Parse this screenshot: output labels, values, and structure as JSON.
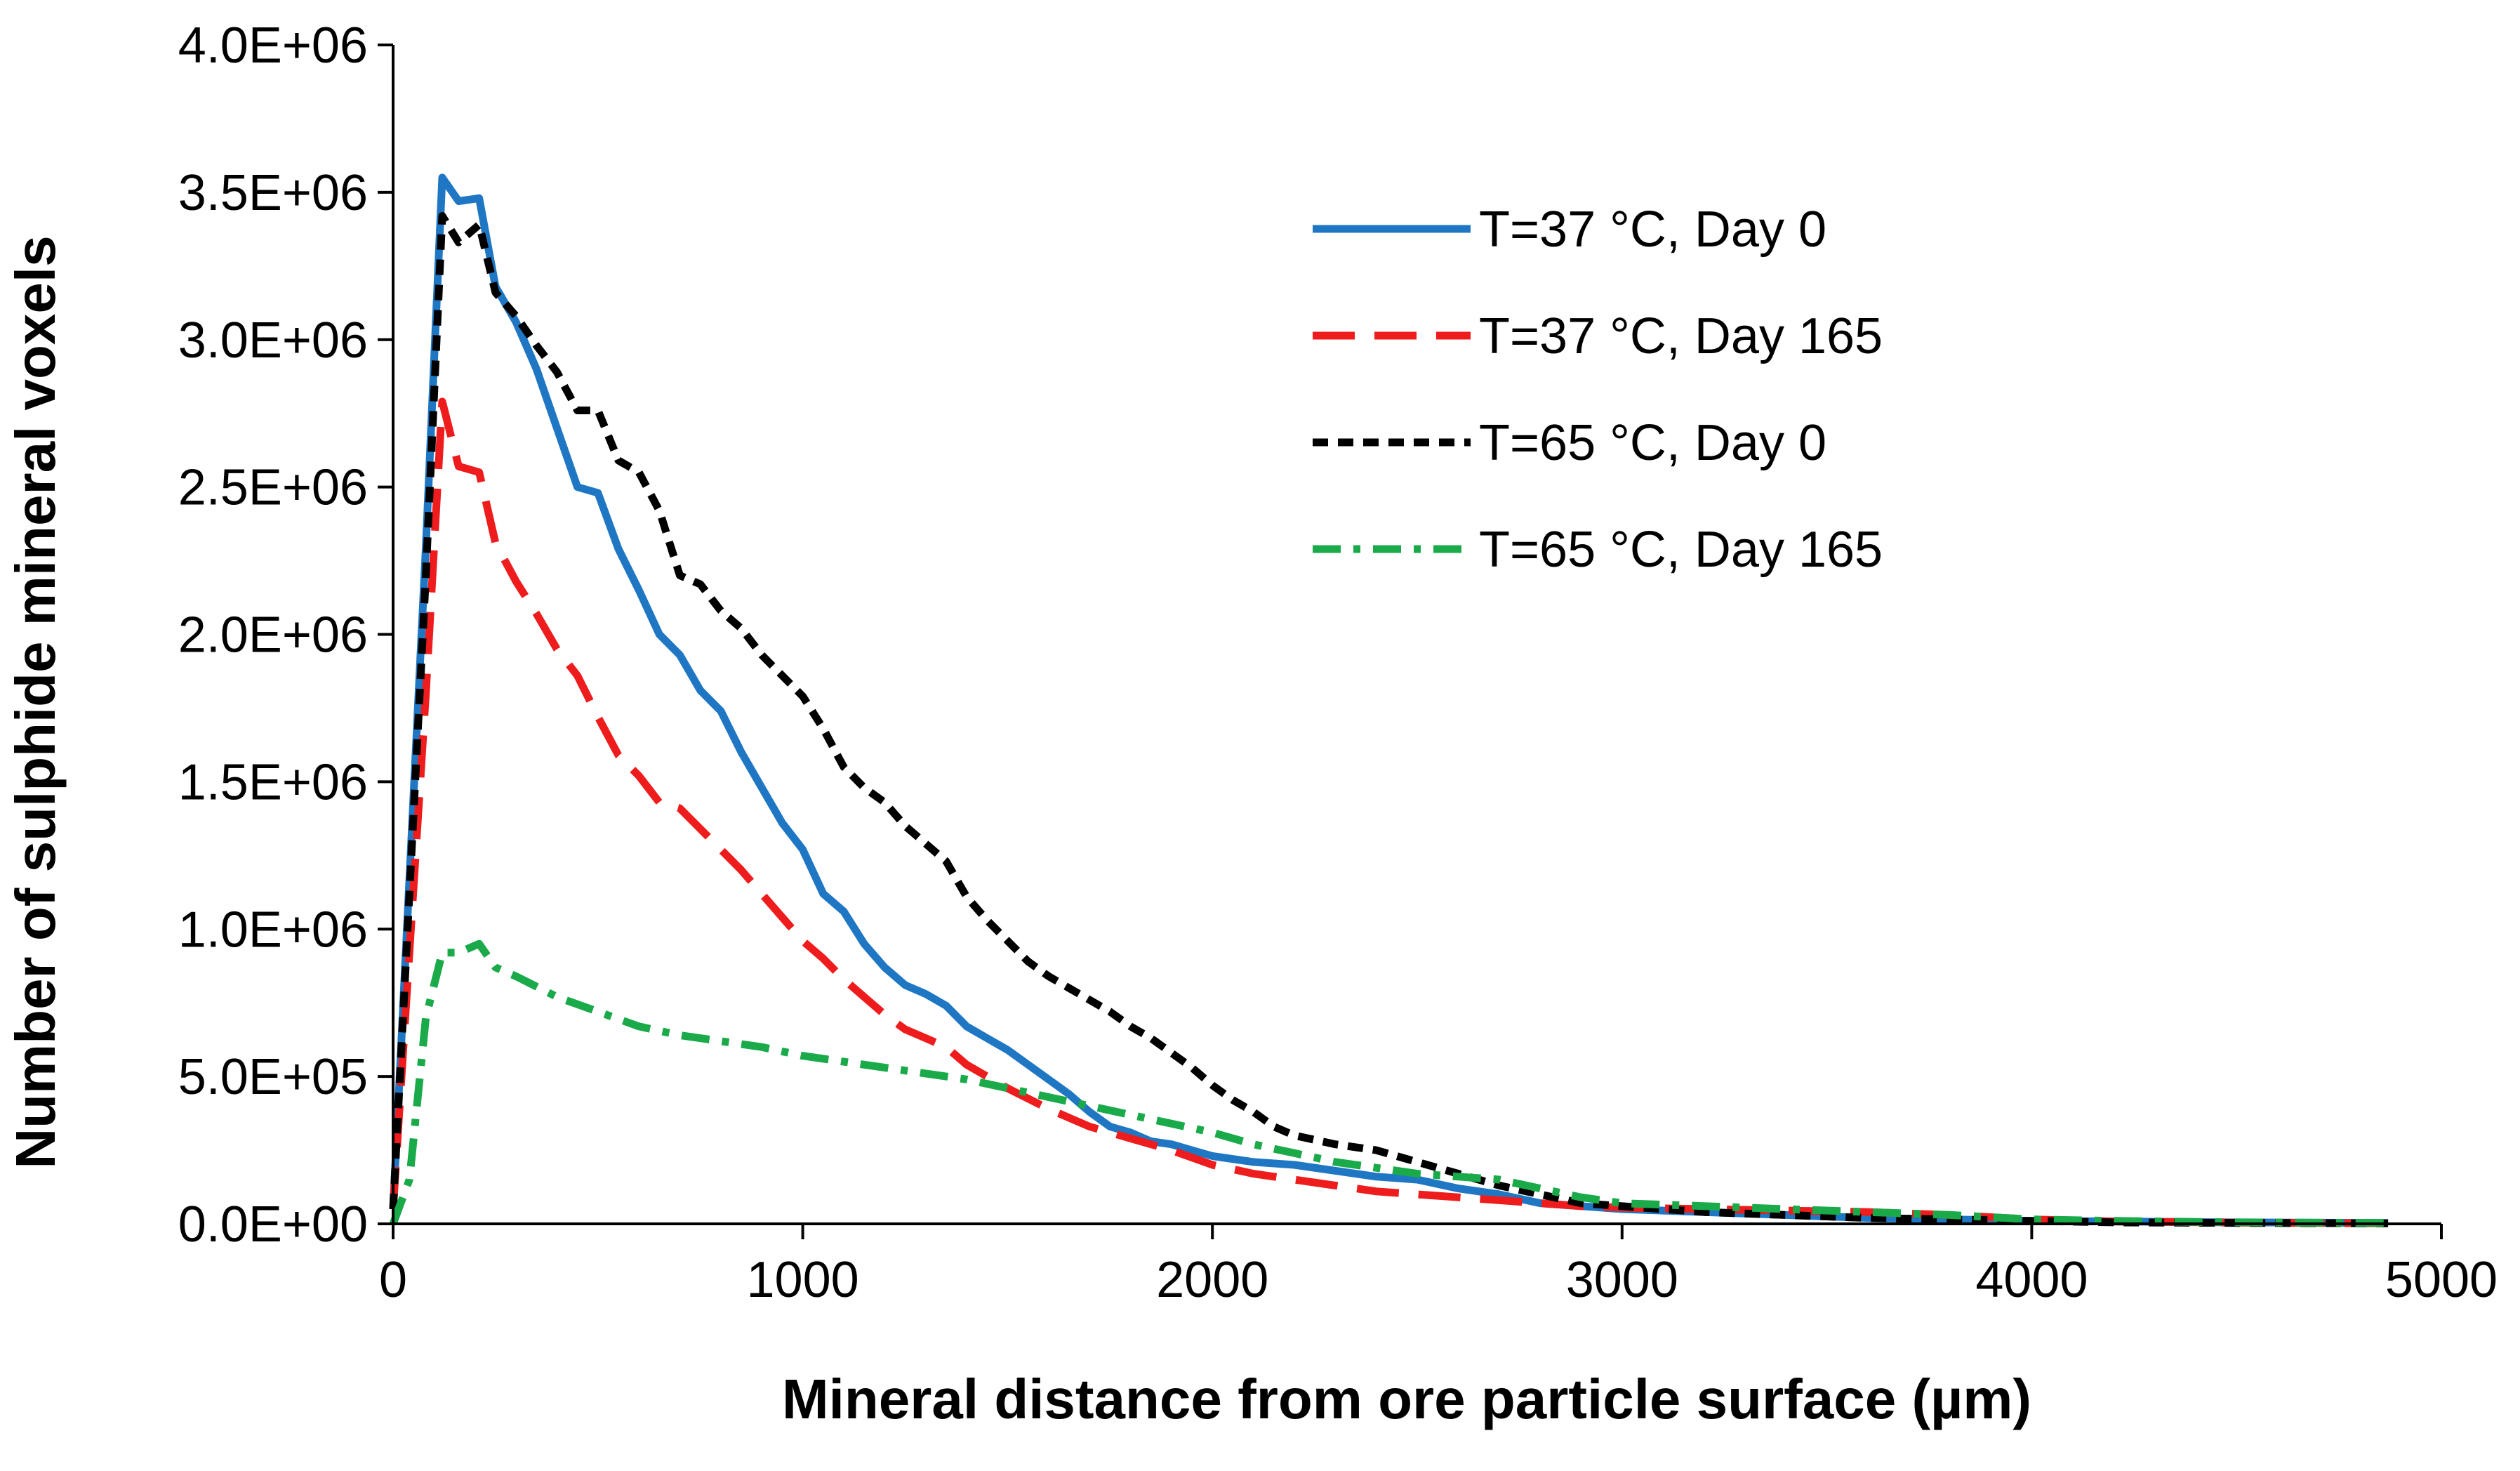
{
  "chart_data": {
    "type": "line",
    "title": "",
    "xlabel": "Mineral distance from ore particle surface (µm)",
    "ylabel": "Number of sulphide mineral voxels",
    "xlim": [
      0,
      5000
    ],
    "ylim": [
      0,
      4000000
    ],
    "xticks": [
      0,
      1000,
      2000,
      3000,
      4000,
      5000
    ],
    "xtick_labels": [
      "0",
      "1000",
      "2000",
      "3000",
      "4000",
      "5000"
    ],
    "yticks": [
      0,
      500000,
      1000000,
      1500000,
      2000000,
      2500000,
      3000000,
      3500000,
      4000000
    ],
    "ytick_labels": [
      "0.0E+00",
      "5.0E+05",
      "1.0E+06",
      "1.5E+06",
      "2.0E+06",
      "2.5E+06",
      "3.0E+06",
      "3.5E+06",
      "4.0E+06"
    ],
    "grid": false,
    "legend_position": "top-right",
    "series": [
      {
        "name": "T=37 °C, Day 0",
        "color": "#1f77c4",
        "dash": "solid",
        "x": [
          0,
          80,
          120,
          160,
          210,
          250,
          300,
          350,
          400,
          450,
          500,
          550,
          600,
          650,
          700,
          750,
          800,
          850,
          900,
          950,
          1000,
          1050,
          1100,
          1150,
          1200,
          1250,
          1300,
          1350,
          1400,
          1450,
          1500,
          1550,
          1600,
          1650,
          1700,
          1750,
          1800,
          1850,
          1900,
          1950,
          2000,
          2100,
          2200,
          2300,
          2400,
          2500,
          2600,
          2700,
          2800,
          2900,
          3000,
          3200,
          3400,
          3600,
          3800,
          4000,
          4200,
          4500,
          4870
        ],
        "y": [
          50000,
          2300000,
          3550000,
          3470000,
          3480000,
          3180000,
          3060000,
          2900000,
          2700000,
          2500000,
          2480000,
          2290000,
          2150000,
          2000000,
          1930000,
          1810000,
          1740000,
          1600000,
          1480000,
          1360000,
          1270000,
          1120000,
          1060000,
          950000,
          870000,
          810000,
          780000,
          740000,
          670000,
          630000,
          590000,
          540000,
          490000,
          440000,
          380000,
          330000,
          310000,
          280000,
          270000,
          250000,
          230000,
          210000,
          200000,
          180000,
          160000,
          150000,
          120000,
          100000,
          70000,
          60000,
          50000,
          40000,
          30000,
          20000,
          15000,
          10000,
          8000,
          5000,
          3000
        ]
      },
      {
        "name": "T=37 °C, Day 165",
        "color": "#ee1c1c",
        "dash": "long-dash",
        "x": [
          0,
          80,
          120,
          160,
          210,
          250,
          300,
          350,
          400,
          450,
          500,
          550,
          600,
          650,
          700,
          750,
          800,
          850,
          900,
          950,
          1000,
          1050,
          1100,
          1150,
          1200,
          1250,
          1300,
          1350,
          1400,
          1450,
          1500,
          1600,
          1700,
          1800,
          1900,
          2000,
          2100,
          2200,
          2300,
          2400,
          2500,
          2600,
          2700,
          2800,
          2900,
          3000,
          3200,
          3400,
          3600,
          3800,
          4000,
          4200,
          4500,
          4870
        ],
        "y": [
          50000,
          1800000,
          2790000,
          2570000,
          2550000,
          2310000,
          2180000,
          2070000,
          1950000,
          1860000,
          1720000,
          1590000,
          1520000,
          1430000,
          1410000,
          1340000,
          1270000,
          1200000,
          1120000,
          1040000,
          960000,
          900000,
          830000,
          770000,
          710000,
          660000,
          630000,
          600000,
          540000,
          500000,
          460000,
          390000,
          330000,
          290000,
          250000,
          200000,
          170000,
          150000,
          130000,
          110000,
          100000,
          90000,
          80000,
          70000,
          60000,
          55000,
          50000,
          45000,
          40000,
          30000,
          15000,
          8000,
          4000,
          2000
        ]
      },
      {
        "name": "T=65 °C, Day 0",
        "color": "#000000",
        "dash": "short-dash",
        "x": [
          0,
          80,
          120,
          160,
          210,
          250,
          300,
          350,
          400,
          450,
          500,
          550,
          600,
          650,
          700,
          750,
          800,
          850,
          900,
          950,
          1000,
          1050,
          1100,
          1150,
          1200,
          1250,
          1300,
          1350,
          1400,
          1450,
          1500,
          1550,
          1600,
          1650,
          1700,
          1750,
          1800,
          1850,
          1900,
          1950,
          2000,
          2050,
          2100,
          2150,
          2200,
          2300,
          2400,
          2500,
          2600,
          2700,
          2800,
          2900,
          3000,
          3200,
          3400,
          3600,
          3800,
          4000,
          4200,
          4500,
          4870
        ],
        "y": [
          50000,
          2200000,
          3420000,
          3330000,
          3390000,
          3160000,
          3080000,
          2980000,
          2890000,
          2760000,
          2760000,
          2590000,
          2550000,
          2420000,
          2200000,
          2170000,
          2080000,
          2020000,
          1930000,
          1860000,
          1790000,
          1680000,
          1550000,
          1480000,
          1430000,
          1350000,
          1290000,
          1230000,
          1110000,
          1030000,
          960000,
          890000,
          840000,
          800000,
          760000,
          720000,
          670000,
          630000,
          580000,
          530000,
          470000,
          420000,
          380000,
          330000,
          300000,
          270000,
          250000,
          210000,
          170000,
          130000,
          100000,
          70000,
          60000,
          40000,
          30000,
          20000,
          15000,
          10000,
          5000,
          3000,
          2000
        ]
      },
      {
        "name": "T=65 °C, Day 165",
        "color": "#1aaa4a",
        "dash": "dash-dot",
        "x": [
          0,
          40,
          80,
          120,
          160,
          210,
          250,
          300,
          400,
          500,
          600,
          700,
          800,
          900,
          1000,
          1100,
          1200,
          1300,
          1400,
          1500,
          1600,
          1700,
          1800,
          1900,
          2000,
          2100,
          2200,
          2300,
          2400,
          2500,
          2600,
          2700,
          2800,
          2900,
          3000,
          3200,
          3400,
          3600,
          3800,
          4000,
          4200,
          4500,
          4870
        ],
        "y": [
          0,
          150000,
          700000,
          920000,
          920000,
          950000,
          870000,
          840000,
          770000,
          720000,
          670000,
          640000,
          620000,
          600000,
          570000,
          550000,
          530000,
          510000,
          490000,
          460000,
          430000,
          400000,
          370000,
          340000,
          310000,
          270000,
          240000,
          210000,
          190000,
          170000,
          160000,
          150000,
          120000,
          90000,
          70000,
          60000,
          50000,
          40000,
          30000,
          15000,
          10000,
          5000,
          3000
        ]
      }
    ]
  }
}
